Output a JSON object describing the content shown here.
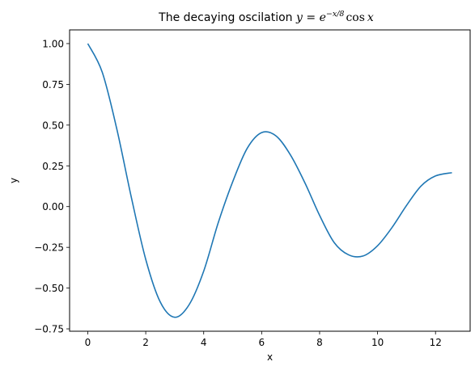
{
  "chart_data": {
    "type": "line",
    "title": {
      "prefix": "The decaying oscilation ",
      "var": "y",
      "eq": " = ",
      "base": "e",
      "exponent": "−x/8",
      "func": "cos",
      "arg": "x"
    },
    "xlabel": "x",
    "ylabel": "y",
    "xlim": [
      -0.628,
      13.195
    ],
    "ylim": [
      -0.7646,
      1.084
    ],
    "xticks": [
      0,
      2,
      4,
      6,
      8,
      10,
      12
    ],
    "xtick_labels": [
      "0",
      "2",
      "4",
      "6",
      "8",
      "10",
      "12"
    ],
    "yticks": [
      -0.75,
      -0.5,
      -0.25,
      0.0,
      0.25,
      0.5,
      0.75,
      1.0
    ],
    "ytick_labels": [
      "−0.75",
      "−0.50",
      "−0.25",
      "0.00",
      "0.25",
      "0.50",
      "0.75",
      "1.00"
    ],
    "grid": false,
    "line_color": "#1f77b4",
    "series": [
      {
        "x": [
          0.0,
          0.5,
          1.0,
          1.5,
          2.0,
          2.5,
          3.0,
          3.5,
          4.0,
          4.5,
          5.0,
          5.5,
          6.0,
          6.5,
          7.0,
          7.5,
          8.0,
          8.5,
          9.0,
          9.5,
          10.0,
          10.5,
          11.0,
          11.5,
          12.0,
          12.566
        ],
        "values": [
          1.0,
          0.824,
          0.477,
          0.059,
          -0.324,
          -0.585,
          -0.679,
          -0.601,
          -0.396,
          -0.1,
          0.152,
          0.357,
          0.454,
          0.433,
          0.315,
          0.143,
          -0.054,
          -0.22,
          -0.296,
          -0.303,
          -0.24,
          -0.128,
          0.007,
          0.126,
          0.188,
          0.208
        ]
      }
    ]
  }
}
